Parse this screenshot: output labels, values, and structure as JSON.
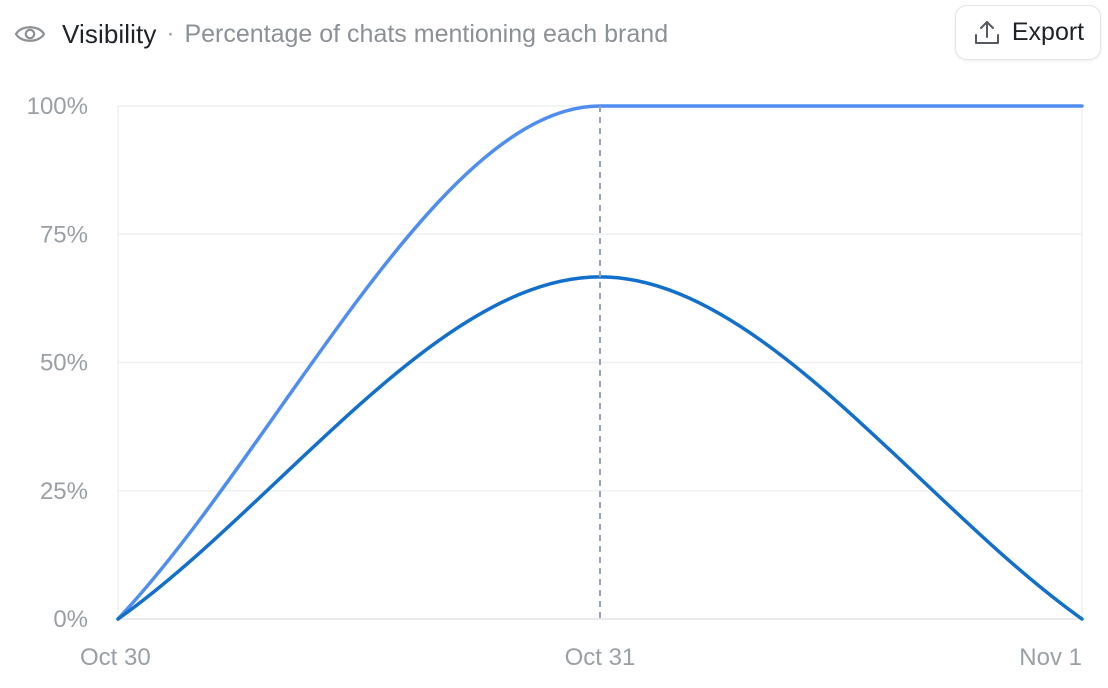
{
  "header": {
    "eye_icon": "eye-icon",
    "title": "Visibility",
    "separator": "·",
    "subtitle": "Percentage of chats mentioning each brand"
  },
  "export_button": {
    "icon": "upload-icon",
    "label": "Export"
  },
  "chart_data": {
    "type": "line",
    "title": "",
    "xlabel": "",
    "ylabel": "",
    "x": [
      "Oct 30",
      "Oct 31",
      "Nov 1"
    ],
    "ylim": [
      0,
      100
    ],
    "yticks": [
      0,
      25,
      50,
      75,
      100
    ],
    "ytick_labels": [
      "0%",
      "25%",
      "50%",
      "75%",
      "100%"
    ],
    "grid": true,
    "hover_x": "Oct 31",
    "series": [
      {
        "color": "#4f8ef0",
        "values": [
          0,
          100,
          100
        ]
      },
      {
        "color": "#1270cc",
        "values": [
          0,
          66.7,
          0
        ]
      }
    ]
  }
}
